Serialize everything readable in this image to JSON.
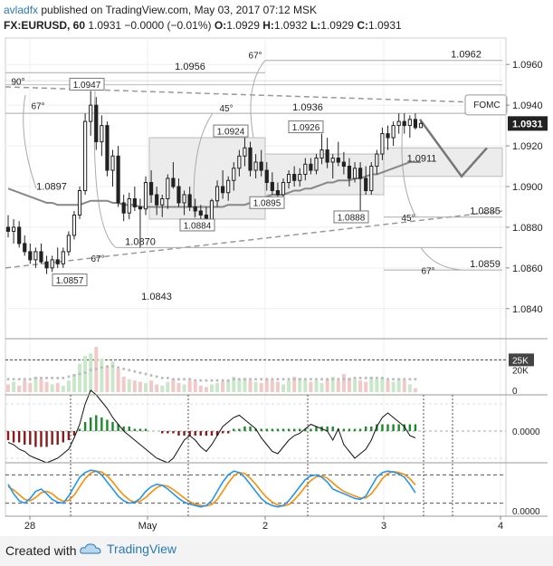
{
  "header": {
    "author": "avladfx",
    "published_text": "published on TradingView.com, May 03, 2017 07:12 MSK",
    "symbol": "FX:EURUSD, 60",
    "last": "1.0931",
    "change": "−0.0000 (−0.01%)",
    "o_label": "O:",
    "o_value": "1.0929",
    "h_label": "H:",
    "h_value": "1.0932",
    "l_label": "L:",
    "l_value": "1.0929",
    "c_label": "C:",
    "c_value": "1.0931"
  },
  "footer": {
    "created_with": "Created with",
    "brand": "TradingView"
  },
  "colors": {
    "up": "#26a69a",
    "down": "#222222",
    "accent": "#2a7ab5",
    "hist_up": "#1b8a2a",
    "hist_down": "#8b1a1a",
    "stoch_k": "#2196f3",
    "stoch_d": "#ff8c00"
  },
  "chart_data": {
    "type": "candlestick",
    "price_axis": {
      "ticks": [
        1.096,
        1.094,
        1.092,
        1.09,
        1.088,
        1.086,
        1.084
      ],
      "tick_labels": [
        "1.0960",
        "1.0940",
        "1.0920",
        "1.0900",
        "1.0880",
        "1.0860",
        "1.0840"
      ],
      "last_price": "1.0931",
      "range": [
        1.0827,
        1.0973
      ]
    },
    "time_axis": {
      "labels": [
        "28",
        "May",
        "2",
        "3",
        "4"
      ]
    },
    "candles": [
      [
        1.088,
        1.0886,
        1.0875,
        1.0878
      ],
      [
        1.0878,
        1.0884,
        1.0872,
        1.088
      ],
      [
        1.088,
        1.0883,
        1.087,
        1.0872
      ],
      [
        1.0872,
        1.0876,
        1.0866,
        1.0868
      ],
      [
        1.0868,
        1.0872,
        1.0862,
        1.0864
      ],
      [
        1.0864,
        1.087,
        1.086,
        1.0868
      ],
      [
        1.0868,
        1.0872,
        1.0862,
        1.0863
      ],
      [
        1.0863,
        1.0866,
        1.0857,
        1.086
      ],
      [
        1.086,
        1.0866,
        1.0858,
        1.0864
      ],
      [
        1.0864,
        1.087,
        1.086,
        1.0862
      ],
      [
        1.0862,
        1.087,
        1.086,
        1.0868
      ],
      [
        1.0868,
        1.0878,
        1.0866,
        1.0876
      ],
      [
        1.0876,
        1.0888,
        1.0874,
        1.0886
      ],
      [
        1.0886,
        1.09,
        1.0884,
        1.0898
      ],
      [
        1.0898,
        1.0936,
        1.0896,
        1.0932
      ],
      [
        1.0932,
        1.0947,
        1.0925,
        1.094
      ],
      [
        1.094,
        1.0944,
        1.0918,
        1.0922
      ],
      [
        1.0922,
        1.0935,
        1.0915,
        1.093
      ],
      [
        1.093,
        1.0932,
        1.0905,
        1.0908
      ],
      [
        1.0908,
        1.0918,
        1.09,
        1.0915
      ],
      [
        1.0915,
        1.092,
        1.089,
        1.0892
      ],
      [
        1.0892,
        1.0896,
        1.0883,
        1.0887
      ],
      [
        1.0887,
        1.0897,
        1.0884,
        1.0894
      ],
      [
        1.0894,
        1.09,
        1.0888,
        1.089
      ],
      [
        1.089,
        1.0894,
        1.087,
        1.0889
      ],
      [
        1.0889,
        1.0905,
        1.0886,
        1.0902
      ],
      [
        1.0902,
        1.0908,
        1.0892,
        1.0896
      ],
      [
        1.0896,
        1.09,
        1.0886,
        1.0891
      ],
      [
        1.0891,
        1.0896,
        1.0885,
        1.0894
      ],
      [
        1.0894,
        1.0906,
        1.0889,
        1.0904
      ],
      [
        1.0904,
        1.0912,
        1.0899,
        1.09
      ],
      [
        1.09,
        1.0904,
        1.089,
        1.0892
      ],
      [
        1.0892,
        1.0898,
        1.0886,
        1.0896
      ],
      [
        1.0896,
        1.09,
        1.0888,
        1.089
      ],
      [
        1.089,
        1.0894,
        1.0885,
        1.0888
      ],
      [
        1.0888,
        1.0891,
        1.088,
        1.0886
      ],
      [
        1.0886,
        1.089,
        1.088,
        1.0884
      ],
      [
        1.0884,
        1.0894,
        1.0882,
        1.0893
      ],
      [
        1.0893,
        1.0903,
        1.089,
        1.09
      ],
      [
        1.09,
        1.0908,
        1.0894,
        1.0897
      ],
      [
        1.0897,
        1.0905,
        1.0893,
        1.0903
      ],
      [
        1.0903,
        1.0912,
        1.0898,
        1.0909
      ],
      [
        1.0909,
        1.0918,
        1.0905,
        1.0915
      ],
      [
        1.0915,
        1.0924,
        1.091,
        1.0919
      ],
      [
        1.0919,
        1.0922,
        1.0905,
        1.0908
      ],
      [
        1.0908,
        1.0916,
        1.0904,
        1.0912
      ],
      [
        1.0912,
        1.0918,
        1.0905,
        1.0908
      ],
      [
        1.0908,
        1.0912,
        1.0898,
        1.0902
      ],
      [
        1.0902,
        1.0907,
        1.0896,
        1.0898
      ],
      [
        1.0898,
        1.0902,
        1.0892,
        1.0896
      ],
      [
        1.0896,
        1.0904,
        1.0895,
        1.0902
      ],
      [
        1.0902,
        1.0908,
        1.0899,
        1.0906
      ],
      [
        1.0906,
        1.091,
        1.09,
        1.0903
      ],
      [
        1.0903,
        1.0909,
        1.09,
        1.0906
      ],
      [
        1.0906,
        1.0914,
        1.0903,
        1.0911
      ],
      [
        1.0911,
        1.0914,
        1.0906,
        1.0908
      ],
      [
        1.0908,
        1.0916,
        1.0906,
        1.0914
      ],
      [
        1.0914,
        1.0926,
        1.0911,
        1.0918
      ],
      [
        1.0918,
        1.0924,
        1.0909,
        1.0912
      ],
      [
        1.0912,
        1.0916,
        1.0904,
        1.0914
      ],
      [
        1.0914,
        1.0922,
        1.091,
        1.0912
      ],
      [
        1.0912,
        1.0917,
        1.0906,
        1.091
      ],
      [
        1.091,
        1.0914,
        1.09,
        1.0904
      ],
      [
        1.0904,
        1.0912,
        1.0902,
        1.0909
      ],
      [
        1.0909,
        1.0912,
        1.0888,
        1.0904
      ],
      [
        1.0904,
        1.091,
        1.0896,
        1.0898
      ],
      [
        1.0898,
        1.0912,
        1.0896,
        1.091
      ],
      [
        1.091,
        1.0918,
        1.0906,
        1.0916
      ],
      [
        1.0916,
        1.0929,
        1.0913,
        1.0926
      ],
      [
        1.0926,
        1.093,
        1.0918,
        1.0924
      ],
      [
        1.0924,
        1.0932,
        1.092,
        1.093
      ],
      [
        1.093,
        1.0936,
        1.0926,
        1.0932
      ],
      [
        1.0932,
        1.0936,
        1.0926,
        1.093
      ],
      [
        1.093,
        1.0935,
        1.0924,
        1.0933
      ],
      [
        1.0933,
        1.0936,
        1.0928,
        1.0929
      ],
      [
        1.0929,
        1.0932,
        1.0929,
        1.0931
      ]
    ],
    "moving_average": [
      1.0899,
      1.0898,
      1.0897,
      1.0896,
      1.0895,
      1.0894,
      1.0893,
      1.0892,
      1.0892,
      1.0891,
      1.0891,
      1.0891,
      1.0891,
      1.0891,
      1.0892,
      1.0893,
      1.0893,
      1.0893,
      1.0893,
      1.0892,
      1.0892,
      1.0891,
      1.0891,
      1.0891,
      1.089,
      1.089,
      1.089,
      1.089,
      1.089,
      1.089,
      1.089,
      1.089,
      1.089,
      1.089,
      1.089,
      1.089,
      1.089,
      1.089,
      1.089,
      1.089,
      1.0891,
      1.0891,
      1.0891,
      1.0891,
      1.0892,
      1.0893,
      1.0894,
      1.0895,
      1.0896,
      1.0896,
      1.0896,
      1.0897,
      1.0898,
      1.0898,
      1.0899,
      1.0899,
      1.09,
      1.0901,
      1.0902,
      1.0902,
      1.0903,
      1.0903,
      1.0903,
      1.0904,
      1.0904,
      1.0905,
      1.0906,
      1.0906,
      1.0907,
      1.0908,
      1.0909,
      1.091,
      1.0911,
      1.0912,
      1.0912,
      1.0912
    ],
    "annotations": {
      "price_labels": [
        "1.0947",
        "1.0924",
        "1.0926",
        "1.0895",
        "1.0884",
        "1.0888",
        "1.0857"
      ],
      "plain_prices": [
        "1.0956",
        "1.0962",
        "1.0936",
        "1.0911",
        "1.0897",
        "1.0870",
        "1.0885",
        "1.0859",
        "1.0843"
      ],
      "angles": [
        "90°",
        "67°",
        "67°",
        "45°",
        "67°",
        "45°",
        "67°"
      ],
      "event": "FOMC"
    },
    "volume": {
      "axis_labels": [
        "25K",
        "20K",
        "0"
      ],
      "values": [
        6,
        8,
        5,
        9,
        7,
        12,
        10,
        8,
        6,
        7,
        5,
        9,
        14,
        22,
        28,
        30,
        35,
        26,
        20,
        24,
        18,
        12,
        10,
        9,
        8,
        7,
        9,
        6,
        5,
        8,
        10,
        7,
        6,
        9,
        8,
        5,
        4,
        6,
        7,
        8,
        9,
        12,
        10,
        11,
        9,
        8,
        7,
        10,
        9,
        8,
        6,
        9,
        12,
        11,
        10,
        8,
        9,
        7,
        10,
        12,
        9,
        14,
        11,
        10,
        9,
        8,
        12,
        10,
        11,
        9,
        8,
        10,
        9,
        6,
        3
      ],
      "average": [
        10,
        10,
        10,
        10,
        10,
        11,
        11,
        11,
        11,
        11,
        11,
        12,
        13,
        14,
        15,
        17,
        18,
        19,
        20,
        20,
        19,
        18,
        17,
        16,
        15,
        14,
        13,
        12,
        11,
        11,
        10,
        10,
        10,
        10,
        9,
        9,
        9,
        9,
        9,
        9,
        9,
        10,
        10,
        10,
        10,
        10,
        10,
        10,
        10,
        10,
        10,
        10,
        10,
        10,
        10,
        10,
        10,
        10,
        10,
        10,
        10,
        10,
        10,
        11,
        11,
        11,
        11,
        11,
        11,
        10,
        10,
        10,
        10,
        10,
        10
      ]
    },
    "oscillator": {
      "axis_labels": [
        "0.0000"
      ],
      "line": [
        -0.0005,
        -0.0006,
        -0.0008,
        -0.0009,
        -0.0011,
        -0.0012,
        -0.0013,
        -0.0014,
        -0.0013,
        -0.0012,
        -0.001,
        -0.0008,
        -0.0003,
        0.0003,
        0.0012,
        0.0018,
        0.0016,
        0.0013,
        0.001,
        0.0006,
        0.0003,
        0.0,
        -0.0002,
        -0.0004,
        -0.0006,
        -0.0008,
        -0.001,
        -0.0012,
        -0.0013,
        -0.0014,
        -0.0012,
        -0.0008,
        -0.0004,
        -0.0002,
        -0.0004,
        -0.0007,
        -0.0009,
        -0.0006,
        -0.0002,
        0.0002,
        0.0004,
        0.0006,
        0.0007,
        0.0005,
        0.0003,
        0.0001,
        -0.0003,
        -0.0006,
        -0.0009,
        -0.001,
        -0.0007,
        -0.0004,
        -0.0002,
        -0.0001,
        0.0001,
        0.0003,
        0.0002,
        0.0001,
        0.0,
        -0.0004,
        0.0001,
        -0.0006,
        -0.0009,
        -0.0012,
        -0.001,
        -0.0008,
        -0.0004,
        0.0002,
        0.0006,
        0.0008,
        0.0006,
        0.0004,
        0.0002,
        -0.0002,
        -0.0003
      ],
      "histogram": [
        -0.0004,
        -0.0005,
        -0.0005,
        -0.0006,
        -0.0006,
        -0.0007,
        -0.0007,
        -0.0007,
        -0.0006,
        -0.0006,
        -0.0005,
        -0.0004,
        -0.0002,
        0.0001,
        0.0004,
        0.0006,
        0.0007,
        0.0006,
        0.0005,
        0.0004,
        0.0003,
        0.0002,
        0.0002,
        0.0001,
        0.0001,
        0.0001,
        0.0,
        0.0,
        -0.0001,
        -0.0001,
        -0.0001,
        -0.0002,
        -0.0002,
        -0.0002,
        -0.0002,
        -0.0002,
        -0.0002,
        -0.0002,
        -0.0002,
        -0.0001,
        -0.0001,
        0.0001,
        0.0001,
        0.0002,
        0.0002,
        0.0001,
        0.0001,
        0.0001,
        0.0001,
        0.0001,
        0.0001,
        0.0001,
        0.0001,
        0.0001,
        0.0001,
        0.0001,
        0.0002,
        0.0002,
        0.0002,
        0.0002,
        0.0001,
        0.0001,
        0.0001,
        0.0001,
        0.0001,
        0.0002,
        0.0002,
        0.0003,
        0.0003,
        0.0003,
        0.0003,
        0.0003,
        0.0003,
        0.0003,
        0.0003
      ]
    },
    "stochastic": {
      "axis_labels": [
        "0.0000"
      ],
      "k": [
        60,
        40,
        25,
        20,
        30,
        45,
        50,
        40,
        28,
        22,
        20,
        35,
        55,
        75,
        85,
        90,
        88,
        80,
        65,
        50,
        35,
        25,
        20,
        22,
        30,
        45,
        55,
        60,
        58,
        50,
        40,
        30,
        22,
        18,
        15,
        12,
        15,
        25,
        45,
        65,
        80,
        88,
        85,
        75,
        60,
        45,
        30,
        20,
        15,
        12,
        15,
        25,
        40,
        55,
        70,
        78,
        80,
        75,
        65,
        50,
        45,
        40,
        35,
        30,
        28,
        35,
        55,
        75,
        85,
        88,
        86,
        82,
        75,
        60,
        42
      ],
      "d": [
        55,
        48,
        38,
        28,
        25,
        32,
        42,
        45,
        40,
        30,
        24,
        26,
        37,
        55,
        72,
        84,
        88,
        86,
        78,
        65,
        50,
        37,
        27,
        22,
        24,
        32,
        43,
        53,
        58,
        56,
        49,
        40,
        31,
        23,
        18,
        15,
        14,
        17,
        28,
        45,
        63,
        78,
        85,
        83,
        73,
        60,
        45,
        32,
        22,
        16,
        14,
        17,
        27,
        40,
        55,
        68,
        76,
        78,
        73,
        63,
        53,
        45,
        40,
        35,
        31,
        31,
        40,
        55,
        72,
        83,
        87,
        85,
        81,
        72,
        59
      ]
    }
  }
}
